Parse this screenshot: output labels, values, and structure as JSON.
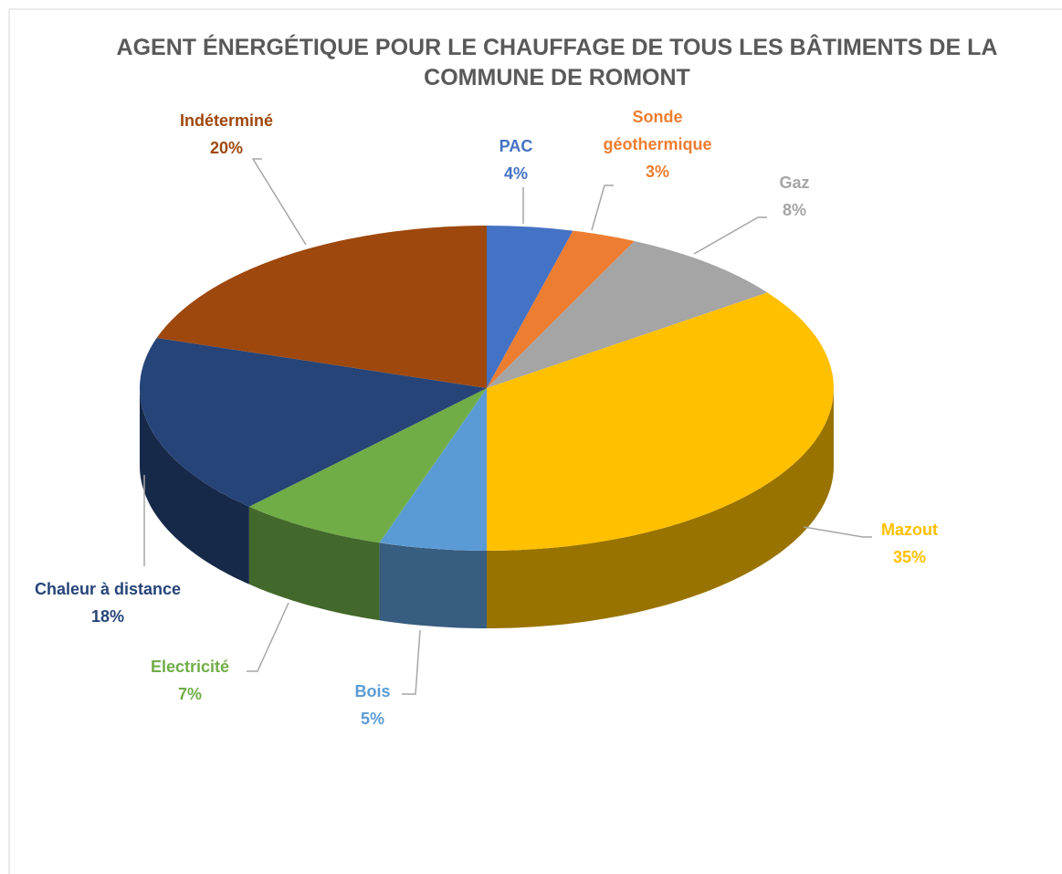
{
  "chart_data": {
    "type": "pie",
    "title": "AGENT ÉNERGÉTIQUE POUR LE CHAUFFAGE DE TOUS LES BÂTIMENTS DE LA COMMUNE DE ROMONT",
    "categories": [
      "PAC",
      "Sonde géothermique",
      "Gaz",
      "Mazout",
      "Bois",
      "Electricité",
      "Chaleur à distance",
      "Indéterminé"
    ],
    "values": [
      4,
      3,
      8,
      35,
      5,
      7,
      18,
      20
    ],
    "value_labels": [
      "4%",
      "3%",
      "8%",
      "35%",
      "5%",
      "7%",
      "18%",
      "20%"
    ],
    "colors": [
      "#4472c4",
      "#ed7d31",
      "#a5a5a5",
      "#ffc000",
      "#5b9bd5",
      "#70ad47",
      "#264478",
      "#9e480e"
    ]
  }
}
